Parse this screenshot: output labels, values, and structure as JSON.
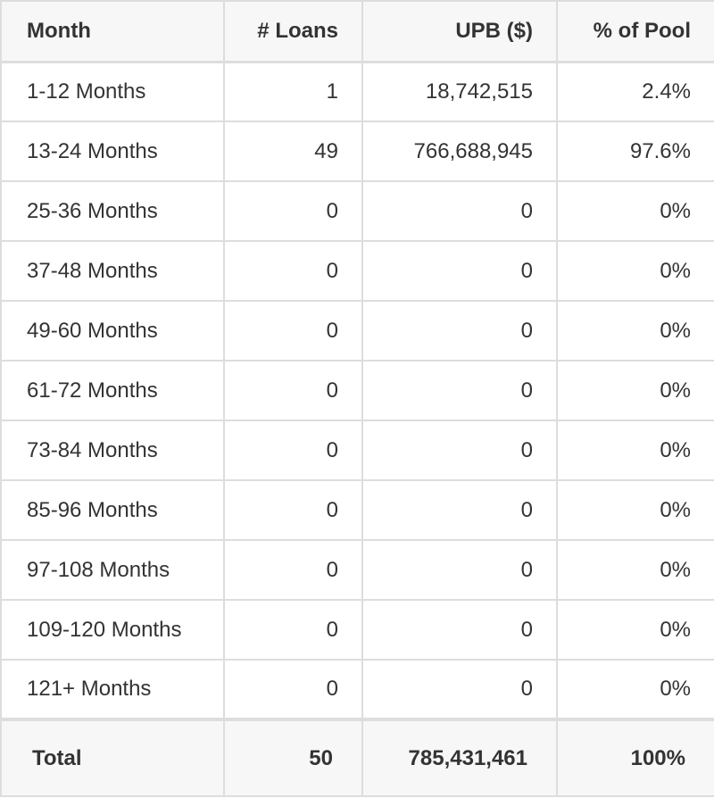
{
  "table": {
    "headers": [
      "Month",
      "# Loans",
      "UPB ($)",
      "% of Pool"
    ],
    "rows": [
      {
        "month": "1-12 Months",
        "loans": "1",
        "upb": "18,742,515",
        "pct": "2.4%"
      },
      {
        "month": "13-24 Months",
        "loans": "49",
        "upb": "766,688,945",
        "pct": "97.6%"
      },
      {
        "month": "25-36 Months",
        "loans": "0",
        "upb": "0",
        "pct": "0%"
      },
      {
        "month": "37-48 Months",
        "loans": "0",
        "upb": "0",
        "pct": "0%"
      },
      {
        "month": "49-60 Months",
        "loans": "0",
        "upb": "0",
        "pct": "0%"
      },
      {
        "month": "61-72 Months",
        "loans": "0",
        "upb": "0",
        "pct": "0%"
      },
      {
        "month": "73-84 Months",
        "loans": "0",
        "upb": "0",
        "pct": "0%"
      },
      {
        "month": "85-96 Months",
        "loans": "0",
        "upb": "0",
        "pct": "0%"
      },
      {
        "month": "97-108 Months",
        "loans": "0",
        "upb": "0",
        "pct": "0%"
      },
      {
        "month": "109-120 Months",
        "loans": "0",
        "upb": "0",
        "pct": "0%"
      },
      {
        "month": "121+ Months",
        "loans": "0",
        "upb": "0",
        "pct": "0%"
      }
    ],
    "total": {
      "label": "Total",
      "loans": "50",
      "upb": "785,431,461",
      "pct": "100%"
    }
  }
}
